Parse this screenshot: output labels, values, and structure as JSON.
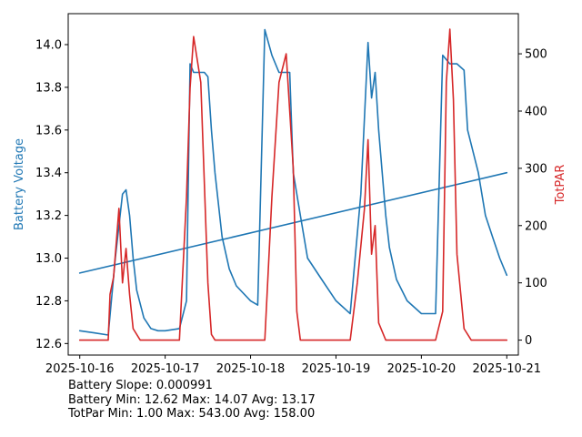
{
  "chart_data": {
    "type": "line",
    "xlim": [
      "2025-10-15T20:45:00",
      "2025-10-21T03:15:00"
    ],
    "x_ticks": [
      "2025-10-16",
      "2025-10-17",
      "2025-10-18",
      "2025-10-19",
      "2025-10-20",
      "2025-10-21"
    ],
    "left_axis": {
      "label": "Battery Voltage",
      "color": "#1f77b4",
      "ylim": [
        12.546,
        14.145
      ],
      "ticks": [
        "12.6",
        "12.8",
        "13.0",
        "13.2",
        "13.4",
        "13.6",
        "13.8",
        "14.0"
      ]
    },
    "right_axis": {
      "label": "TotPAR",
      "color": "#d62728",
      "ylim": [
        -26.1,
        570.1
      ],
      "ticks": [
        "0",
        "100",
        "200",
        "300",
        "400",
        "500"
      ]
    },
    "series": [
      {
        "axis": "left",
        "color": "#1f77b4",
        "x": [
          "2025-10-16T00:00",
          "2025-10-16T04:00",
          "2025-10-16T08:00",
          "2025-10-16T10:00",
          "2025-10-16T12:00",
          "2025-10-16T13:00",
          "2025-10-16T14:00",
          "2025-10-16T15:00",
          "2025-10-16T16:00",
          "2025-10-16T18:00",
          "2025-10-16T20:00",
          "2025-10-16T22:00",
          "2025-10-17T00:00",
          "2025-10-17T04:00",
          "2025-10-17T06:00",
          "2025-10-17T07:00",
          "2025-10-17T08:00",
          "2025-10-17T11:00",
          "2025-10-17T12:00",
          "2025-10-17T13:00",
          "2025-10-17T14:00",
          "2025-10-17T16:00",
          "2025-10-17T18:00",
          "2025-10-17T20:00",
          "2025-10-18T00:00",
          "2025-10-18T02:00",
          "2025-10-18T04:00",
          "2025-10-18T06:00",
          "2025-10-18T08:00",
          "2025-10-18T08:30",
          "2025-10-18T11:00",
          "2025-10-18T12:00",
          "2025-10-18T14:00",
          "2025-10-18T16:00",
          "2025-10-18T20:00",
          "2025-10-19T00:00",
          "2025-10-19T04:00",
          "2025-10-19T07:00",
          "2025-10-19T09:00",
          "2025-10-19T10:00",
          "2025-10-19T11:00",
          "2025-10-19T12:00",
          "2025-10-19T13:00",
          "2025-10-19T14:00",
          "2025-10-19T15:00",
          "2025-10-19T17:00",
          "2025-10-19T20:00",
          "2025-10-20T00:00",
          "2025-10-20T04:00",
          "2025-10-20T06:00",
          "2025-10-20T08:00",
          "2025-10-20T10:00",
          "2025-10-20T12:00",
          "2025-10-20T13:00",
          "2025-10-20T16:00",
          "2025-10-20T18:00",
          "2025-10-20T20:00",
          "2025-10-20T22:00",
          "2025-10-21T00:00"
        ],
        "y": [
          12.66,
          12.65,
          12.64,
          13.0,
          13.3,
          13.32,
          13.2,
          13.0,
          12.85,
          12.72,
          12.67,
          12.66,
          12.66,
          12.67,
          12.8,
          13.91,
          13.87,
          13.87,
          13.85,
          13.6,
          13.4,
          13.1,
          12.95,
          12.87,
          12.8,
          12.78,
          14.07,
          13.95,
          13.87,
          13.87,
          13.87,
          13.4,
          13.2,
          13.0,
          12.9,
          12.8,
          12.74,
          13.3,
          14.01,
          13.75,
          13.87,
          13.6,
          13.4,
          13.2,
          13.05,
          12.9,
          12.8,
          12.74,
          12.74,
          13.95,
          13.91,
          13.91,
          13.88,
          13.6,
          13.4,
          13.2,
          13.1,
          13.0,
          12.92
        ]
      },
      {
        "axis": "left",
        "color": "#1f77b4",
        "x": [
          "2025-10-16T00:00",
          "2025-10-21T00:00"
        ],
        "y": [
          12.93,
          13.4
        ]
      },
      {
        "axis": "right",
        "color": "#d62728",
        "x": [
          "2025-10-16T00:00",
          "2025-10-16T08:00",
          "2025-10-16T08:30",
          "2025-10-16T09:30",
          "2025-10-16T11:00",
          "2025-10-16T12:00",
          "2025-10-16T13:00",
          "2025-10-16T14:00",
          "2025-10-16T15:00",
          "2025-10-16T17:00",
          "2025-10-16T20:00",
          "2025-10-17T00:00",
          "2025-10-17T04:00",
          "2025-10-17T06:00",
          "2025-10-17T07:00",
          "2025-10-17T08:00",
          "2025-10-17T10:00",
          "2025-10-17T12:00",
          "2025-10-17T13:00",
          "2025-10-17T14:00",
          "2025-10-17T16:00",
          "2025-10-18T00:00",
          "2025-10-18T04:00",
          "2025-10-18T06:00",
          "2025-10-18T08:00",
          "2025-10-18T10:00",
          "2025-10-18T12:00",
          "2025-10-18T13:00",
          "2025-10-18T14:00",
          "2025-10-18T16:00",
          "2025-10-19T04:00",
          "2025-10-19T06:00",
          "2025-10-19T08:00",
          "2025-10-19T09:00",
          "2025-10-19T10:00",
          "2025-10-19T11:00",
          "2025-10-19T12:00",
          "2025-10-19T14:00",
          "2025-10-20T04:00",
          "2025-10-20T06:00",
          "2025-10-20T07:00",
          "2025-10-20T08:00",
          "2025-10-20T09:00",
          "2025-10-20T10:00",
          "2025-10-20T12:00",
          "2025-10-20T14:00",
          "2025-10-21T00:00"
        ],
        "y": [
          0,
          0,
          80,
          110,
          230,
          100,
          160,
          80,
          20,
          0,
          0,
          0,
          0,
          250,
          440,
          530,
          450,
          100,
          10,
          0,
          0,
          0,
          0,
          250,
          450,
          500,
          300,
          50,
          0,
          0,
          0,
          100,
          230,
          350,
          150,
          200,
          30,
          0,
          0,
          50,
          450,
          543,
          420,
          150,
          20,
          0,
          0
        ]
      }
    ],
    "stats": [
      "Battery Slope: 0.000991",
      "Battery Min: 12.62 Max: 14.07 Avg: 13.17",
      "TotPar Min: 1.00 Max: 543.00 Avg: 158.00"
    ]
  }
}
